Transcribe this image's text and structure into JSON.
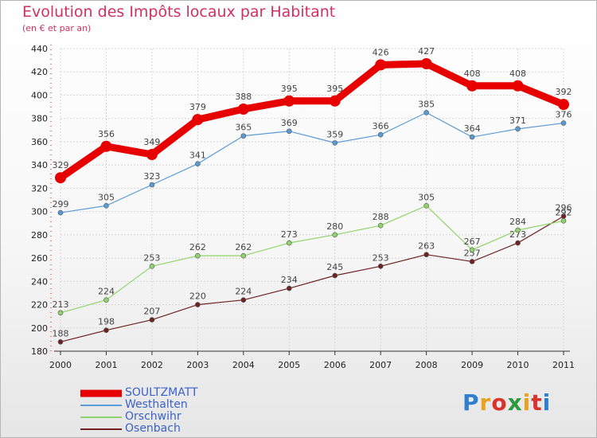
{
  "header": {
    "title": "Evolution des Impôts locaux par Habitant",
    "subtitle": "(en € et par an)"
  },
  "logo": {
    "text": "Proxiti",
    "colors": [
      "#2f7fcf",
      "#e8a21f",
      "#d9342b",
      "#2f9a3a",
      "#e8a21f",
      "#d9342b",
      "#2f7fcf"
    ]
  },
  "chart_data": {
    "type": "line",
    "x": [
      "2000",
      "2001",
      "2002",
      "2003",
      "2004",
      "2005",
      "2006",
      "2007",
      "2008",
      "2009",
      "2010",
      "2011"
    ],
    "ylim": [
      180,
      440
    ],
    "yticks": [
      180,
      200,
      220,
      240,
      260,
      280,
      300,
      320,
      340,
      360,
      380,
      400,
      420,
      440
    ],
    "grid": true,
    "legend_position": "bottom-left",
    "series": [
      {
        "name": "SOULTZMATT",
        "color": "#e60000",
        "values": [
          329,
          356,
          349,
          379,
          388,
          395,
          395,
          426,
          427,
          408,
          408,
          392
        ],
        "emphasis": true
      },
      {
        "name": "Westhalten",
        "color": "#5b9bd5",
        "values": [
          299,
          305,
          323,
          341,
          365,
          369,
          359,
          366,
          385,
          364,
          371,
          376
        ]
      },
      {
        "name": "Orschwihr",
        "color": "#8fd46a",
        "values": [
          213,
          224,
          253,
          262,
          262,
          273,
          280,
          288,
          305,
          267,
          284,
          292
        ]
      },
      {
        "name": "Osenbach",
        "color": "#6e2222",
        "values": [
          188,
          198,
          207,
          220,
          224,
          234,
          245,
          253,
          263,
          257,
          273,
          296
        ]
      }
    ]
  }
}
